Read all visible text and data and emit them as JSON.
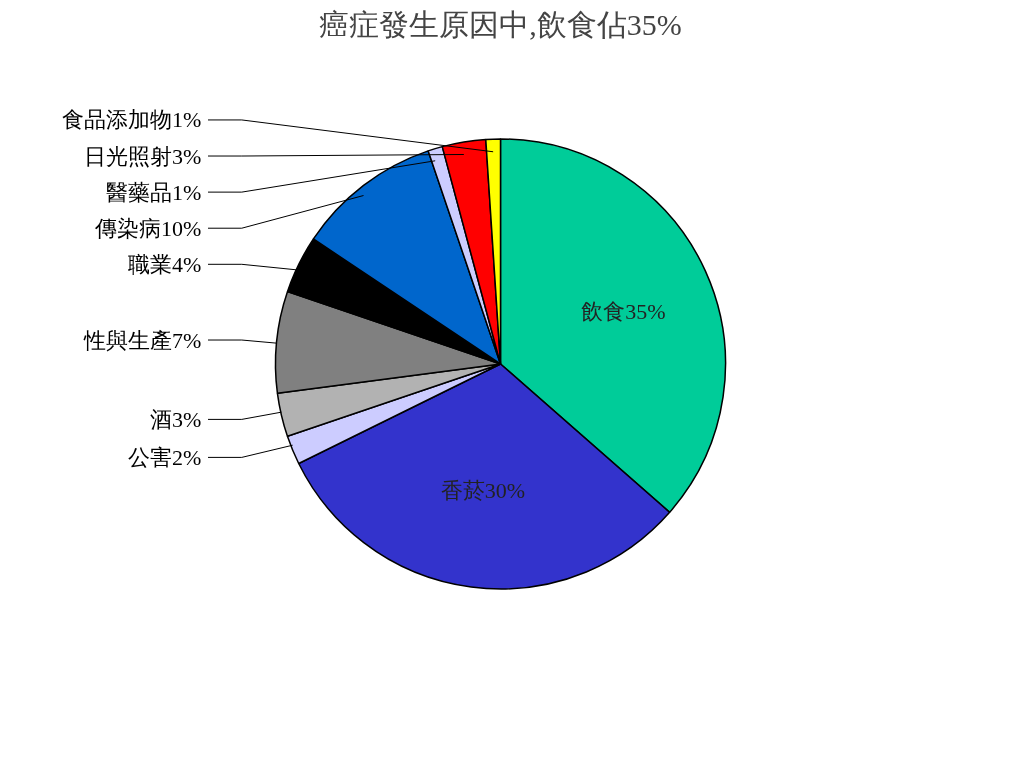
{
  "chart_data": {
    "type": "pie",
    "title": "癌症發生原因中,飲食佔35%",
    "categories": [
      "飲食",
      "香菸",
      "公害",
      "酒",
      "性與生產",
      "職業",
      "傳染病",
      "醫藥品",
      "日光照射",
      "食品添加物"
    ],
    "values": [
      35,
      30,
      2,
      3,
      7,
      4,
      10,
      1,
      3,
      1
    ],
    "value_labels": [
      "35%",
      "30%",
      "2%",
      "3%",
      "7%",
      "4%",
      "10%",
      "1%",
      "3%",
      "1%"
    ],
    "colors": [
      "#00cc99",
      "#3333cc",
      "#ccccff",
      "#b2b2b2",
      "#808080",
      "#000000",
      "#0066cc",
      "#ccccff",
      "#ff0000",
      "#ffff00"
    ]
  }
}
